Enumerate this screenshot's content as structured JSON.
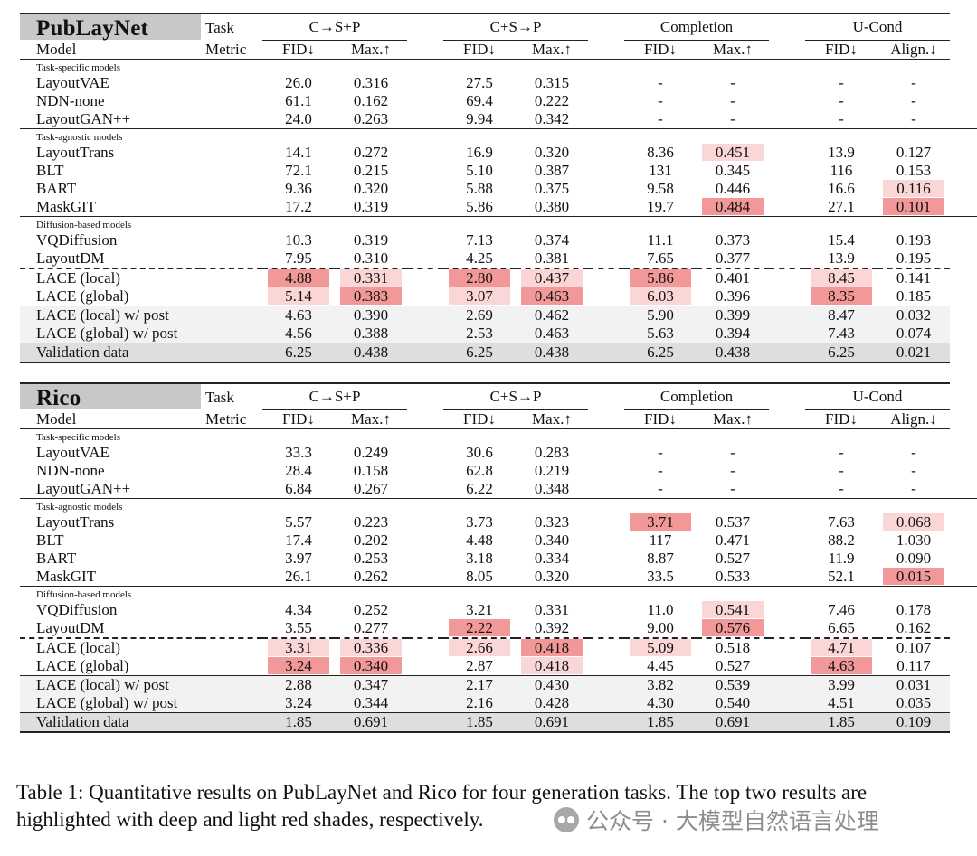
{
  "tables": [
    {
      "dataset": "PubLayNet",
      "header": {
        "task_label": "Task",
        "model_label": "Model",
        "metric_label": "Metric",
        "tasks": [
          {
            "name": "C→S+P",
            "metrics": [
              "FID↓",
              "Max.↑"
            ]
          },
          {
            "name": "C+S→P",
            "metrics": [
              "FID↓",
              "Max.↑"
            ]
          },
          {
            "name": "Completion",
            "metrics": [
              "FID↓",
              "Max.↑"
            ]
          },
          {
            "name": "U-Cond",
            "metrics": [
              "FID↓",
              "Align.↓"
            ]
          }
        ]
      },
      "sections": [
        {
          "title": "Task-specific models",
          "rows": [
            {
              "model": "LayoutVAE",
              "values": [
                "26.0",
                "0.316",
                "27.5",
                "0.315",
                "-",
                "-",
                "-",
                "-"
              ],
              "highlight": [
                "",
                "",
                "",
                "",
                "",
                "",
                "",
                ""
              ]
            },
            {
              "model": "NDN-none",
              "values": [
                "61.1",
                "0.162",
                "69.4",
                "0.222",
                "-",
                "-",
                "-",
                "-"
              ],
              "highlight": [
                "",
                "",
                "",
                "",
                "",
                "",
                "",
                ""
              ]
            },
            {
              "model": "LayoutGAN++",
              "values": [
                "24.0",
                "0.263",
                "9.94",
                "0.342",
                "-",
                "-",
                "-",
                "-"
              ],
              "highlight": [
                "",
                "",
                "",
                "",
                "",
                "",
                "",
                ""
              ]
            }
          ]
        },
        {
          "title": "Task-agnostic models",
          "rows": [
            {
              "model": "LayoutTrans",
              "values": [
                "14.1",
                "0.272",
                "16.9",
                "0.320",
                "8.36",
                "0.451",
                "13.9",
                "0.127"
              ],
              "highlight": [
                "",
                "",
                "",
                "",
                "",
                "light",
                "",
                ""
              ]
            },
            {
              "model": "BLT",
              "values": [
                "72.1",
                "0.215",
                "5.10",
                "0.387",
                "131",
                "0.345",
                "116",
                "0.153"
              ],
              "highlight": [
                "",
                "",
                "",
                "",
                "",
                "",
                "",
                ""
              ]
            },
            {
              "model": "BART",
              "values": [
                "9.36",
                "0.320",
                "5.88",
                "0.375",
                "9.58",
                "0.446",
                "16.6",
                "0.116"
              ],
              "highlight": [
                "",
                "",
                "",
                "",
                "",
                "",
                "",
                "light"
              ]
            },
            {
              "model": "MaskGIT",
              "values": [
                "17.2",
                "0.319",
                "5.86",
                "0.380",
                "19.7",
                "0.484",
                "27.1",
                "0.101"
              ],
              "highlight": [
                "",
                "",
                "",
                "",
                "",
                "deep",
                "",
                "deep"
              ]
            }
          ]
        },
        {
          "title": "Diffusion-based models",
          "rows": [
            {
              "model": "VQDiffusion",
              "values": [
                "10.3",
                "0.319",
                "7.13",
                "0.374",
                "11.1",
                "0.373",
                "15.4",
                "0.193"
              ],
              "highlight": [
                "",
                "",
                "",
                "",
                "",
                "",
                "",
                ""
              ]
            },
            {
              "model": "LayoutDM",
              "values": [
                "7.95",
                "0.310",
                "4.25",
                "0.381",
                "7.65",
                "0.377",
                "13.9",
                "0.195"
              ],
              "highlight": [
                "",
                "",
                "",
                "",
                "",
                "",
                "",
                ""
              ]
            },
            {
              "model": "LACE (local)",
              "values": [
                "4.88",
                "0.331",
                "2.80",
                "0.437",
                "5.86",
                "0.401",
                "8.45",
                "0.141"
              ],
              "highlight": [
                "deep",
                "light",
                "deep",
                "light",
                "deep",
                "",
                "light",
                ""
              ]
            },
            {
              "model": "LACE (global)",
              "values": [
                "5.14",
                "0.383",
                "3.07",
                "0.463",
                "6.03",
                "0.396",
                "8.35",
                "0.185"
              ],
              "highlight": [
                "light",
                "deep",
                "light",
                "deep",
                "light",
                "",
                "deep",
                ""
              ]
            }
          ]
        }
      ],
      "post_rows": [
        {
          "model": "LACE (local) w/ post",
          "values": [
            "4.63",
            "0.390",
            "2.69",
            "0.462",
            "5.90",
            "0.399",
            "8.47",
            "0.032"
          ]
        },
        {
          "model": "LACE (global) w/ post",
          "values": [
            "4.56",
            "0.388",
            "2.53",
            "0.463",
            "5.63",
            "0.394",
            "7.43",
            "0.074"
          ]
        }
      ],
      "validation": {
        "model": "Validation data",
        "values": [
          "6.25",
          "0.438",
          "6.25",
          "0.438",
          "6.25",
          "0.438",
          "6.25",
          "0.021"
        ]
      }
    },
    {
      "dataset": "Rico",
      "header": {
        "task_label": "Task",
        "model_label": "Model",
        "metric_label": "Metric",
        "tasks": [
          {
            "name": "C→S+P",
            "metrics": [
              "FID↓",
              "Max.↑"
            ]
          },
          {
            "name": "C+S→P",
            "metrics": [
              "FID↓",
              "Max.↑"
            ]
          },
          {
            "name": "Completion",
            "metrics": [
              "FID↓",
              "Max.↑"
            ]
          },
          {
            "name": "U-Cond",
            "metrics": [
              "FID↓",
              "Align.↓"
            ]
          }
        ]
      },
      "sections": [
        {
          "title": "Task-specific models",
          "rows": [
            {
              "model": "LayoutVAE",
              "values": [
                "33.3",
                "0.249",
                "30.6",
                "0.283",
                "-",
                "-",
                "-",
                "-"
              ],
              "highlight": [
                "",
                "",
                "",
                "",
                "",
                "",
                "",
                ""
              ]
            },
            {
              "model": "NDN-none",
              "values": [
                "28.4",
                "0.158",
                "62.8",
                "0.219",
                "-",
                "-",
                "-",
                "-"
              ],
              "highlight": [
                "",
                "",
                "",
                "",
                "",
                "",
                "",
                ""
              ]
            },
            {
              "model": "LayoutGAN++",
              "values": [
                "6.84",
                "0.267",
                "6.22",
                "0.348",
                "-",
                "-",
                "-",
                "-"
              ],
              "highlight": [
                "",
                "",
                "",
                "",
                "",
                "",
                "",
                ""
              ]
            }
          ]
        },
        {
          "title": "Task-agnostic models",
          "rows": [
            {
              "model": "LayoutTrans",
              "values": [
                "5.57",
                "0.223",
                "3.73",
                "0.323",
                "3.71",
                "0.537",
                "7.63",
                "0.068"
              ],
              "highlight": [
                "",
                "",
                "",
                "",
                "deep",
                "",
                "",
                "light"
              ]
            },
            {
              "model": "BLT",
              "values": [
                "17.4",
                "0.202",
                "4.48",
                "0.340",
                "117",
                "0.471",
                "88.2",
                "1.030"
              ],
              "highlight": [
                "",
                "",
                "",
                "",
                "",
                "",
                "",
                ""
              ]
            },
            {
              "model": "BART",
              "values": [
                "3.97",
                "0.253",
                "3.18",
                "0.334",
                "8.87",
                "0.527",
                "11.9",
                "0.090"
              ],
              "highlight": [
                "",
                "",
                "",
                "",
                "",
                "",
                "",
                ""
              ]
            },
            {
              "model": "MaskGIT",
              "values": [
                "26.1",
                "0.262",
                "8.05",
                "0.320",
                "33.5",
                "0.533",
                "52.1",
                "0.015"
              ],
              "highlight": [
                "",
                "",
                "",
                "",
                "",
                "",
                "",
                "deep"
              ]
            }
          ]
        },
        {
          "title": "Diffusion-based models",
          "rows": [
            {
              "model": "VQDiffusion",
              "values": [
                "4.34",
                "0.252",
                "3.21",
                "0.331",
                "11.0",
                "0.541",
                "7.46",
                "0.178"
              ],
              "highlight": [
                "",
                "",
                "",
                "",
                "",
                "light",
                "",
                ""
              ]
            },
            {
              "model": "LayoutDM",
              "values": [
                "3.55",
                "0.277",
                "2.22",
                "0.392",
                "9.00",
                "0.576",
                "6.65",
                "0.162"
              ],
              "highlight": [
                "",
                "",
                "deep",
                "",
                "",
                "deep",
                "",
                ""
              ]
            },
            {
              "model": "LACE (local)",
              "values": [
                "3.31",
                "0.336",
                "2.66",
                "0.418",
                "5.09",
                "0.518",
                "4.71",
                "0.107"
              ],
              "highlight": [
                "light",
                "light",
                "light",
                "deep",
                "light",
                "",
                "light",
                ""
              ]
            },
            {
              "model": "LACE (global)",
              "values": [
                "3.24",
                "0.340",
                "2.87",
                "0.418",
                "4.45",
                "0.527",
                "4.63",
                "0.117"
              ],
              "highlight": [
                "deep",
                "deep",
                "",
                "light",
                "",
                "",
                "deep",
                ""
              ]
            }
          ]
        }
      ],
      "post_rows": [
        {
          "model": "LACE (local) w/ post",
          "values": [
            "2.88",
            "0.347",
            "2.17",
            "0.430",
            "3.82",
            "0.539",
            "3.99",
            "0.031"
          ]
        },
        {
          "model": "LACE (global) w/ post",
          "values": [
            "3.24",
            "0.344",
            "2.16",
            "0.428",
            "4.30",
            "0.540",
            "4.51",
            "0.035"
          ]
        }
      ],
      "validation": {
        "model": "Validation data",
        "values": [
          "1.85",
          "0.691",
          "1.85",
          "0.691",
          "1.85",
          "0.691",
          "1.85",
          "0.109"
        ]
      }
    }
  ],
  "caption": "Table 1: Quantitative results on PubLayNet and Rico for four generation tasks. The top two results are highlighted with deep and light red shades, respectively.",
  "watermark": {
    "text": "公众号 · 大模型自然语言处理",
    "icon": "wechat-icon"
  },
  "colors": {
    "deep": "#f39898",
    "light": "#fbd6d6",
    "dataset_header": "#c8c8c8",
    "post_bg": "#f2f2f2",
    "validation_bg": "#dedede"
  }
}
